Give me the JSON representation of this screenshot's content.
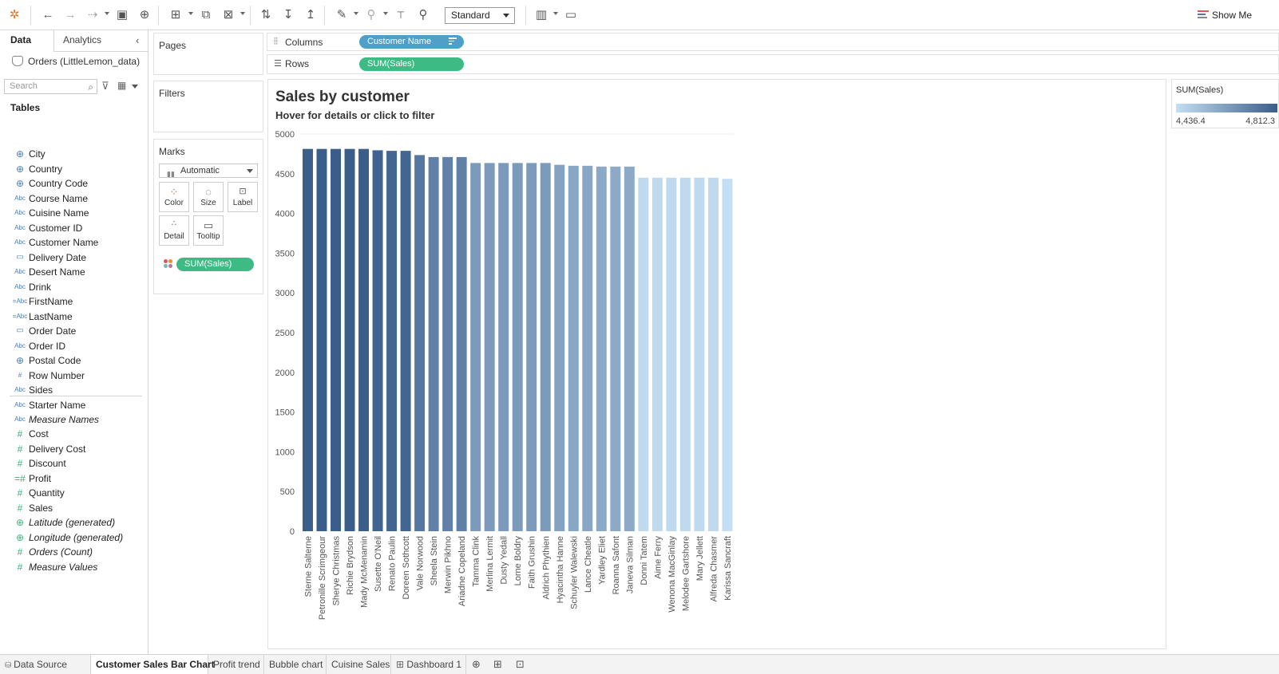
{
  "toolbar": {
    "fit": "Standard",
    "show_me": "Show Me",
    "icons": [
      "tableau-logo-icon",
      "undo-icon",
      "redo-icon",
      "replay-icon",
      "save-icon",
      "new-datasource-icon",
      "new-worksheet-icon",
      "duplicate-sheet-icon",
      "clear-sheet-icon",
      "swap-icon",
      "sort-ascending-icon",
      "sort-descending-icon",
      "highlight-icon",
      "group-icon",
      "label-icon",
      "pin-icon",
      "show-cards-icon",
      "presentation-icon"
    ]
  },
  "data_pane": {
    "tab_data": "Data",
    "tab_analytics": "Analytics",
    "datasource": "Orders (LittleLemon_data)",
    "search_placeholder": "Search",
    "tables_heading": "Tables",
    "dimensions": [
      {
        "icon": "globe",
        "label": "City"
      },
      {
        "icon": "globe",
        "label": "Country"
      },
      {
        "icon": "globe",
        "label": "Country Code"
      },
      {
        "icon": "abc",
        "label": "Course Name"
      },
      {
        "icon": "abc",
        "label": "Cuisine Name"
      },
      {
        "icon": "abc",
        "label": "Customer ID"
      },
      {
        "icon": "abc",
        "label": "Customer Name"
      },
      {
        "icon": "date",
        "label": "Delivery Date"
      },
      {
        "icon": "abc",
        "label": "Desert Name"
      },
      {
        "icon": "abc",
        "label": "Drink"
      },
      {
        "icon": "calc-abc",
        "label": "FirstName"
      },
      {
        "icon": "calc-abc",
        "label": "LastName"
      },
      {
        "icon": "date",
        "label": "Order Date"
      },
      {
        "icon": "abc",
        "label": "Order ID"
      },
      {
        "icon": "globe",
        "label": "Postal Code"
      },
      {
        "icon": "hash",
        "label": "Row Number"
      },
      {
        "icon": "abc",
        "label": "Sides"
      },
      {
        "icon": "abc",
        "label": "Starter Name"
      },
      {
        "icon": "abc",
        "label": "Measure Names",
        "italic": true
      }
    ],
    "measures": [
      {
        "icon": "hash",
        "label": "Cost"
      },
      {
        "icon": "hash",
        "label": "Delivery Cost"
      },
      {
        "icon": "hash",
        "label": "Discount"
      },
      {
        "icon": "calc-hash",
        "label": "Profit"
      },
      {
        "icon": "hash",
        "label": "Quantity"
      },
      {
        "icon": "hash",
        "label": "Sales"
      },
      {
        "icon": "globe",
        "label": "Latitude (generated)",
        "italic": true
      },
      {
        "icon": "globe",
        "label": "Longitude (generated)",
        "italic": true
      },
      {
        "icon": "hash",
        "label": "Orders (Count)",
        "italic": true
      },
      {
        "icon": "hash",
        "label": "Measure Values",
        "italic": true
      }
    ]
  },
  "cards": {
    "pages": "Pages",
    "filters": "Filters",
    "marks": "Marks",
    "mark_type": "Automatic",
    "buttons": [
      "Color",
      "Size",
      "Label",
      "Detail",
      "Tooltip"
    ],
    "marks_pill": "SUM(Sales)"
  },
  "shelves": {
    "columns_label": "Columns",
    "columns_pill": "Customer Name",
    "rows_label": "Rows",
    "rows_pill": "SUM(Sales)"
  },
  "view": {
    "title": "Sales by customer",
    "subtitle": "Hover for details or click to filter"
  },
  "legend": {
    "title": "SUM(Sales)",
    "min_label": "4,436.4",
    "max_label": "4,812.3",
    "color_low": "#c4dff3",
    "color_high": "#3a5d8a"
  },
  "chart_data": {
    "type": "bar",
    "ylim": [
      0,
      5000
    ],
    "yticks": [
      0,
      500,
      1000,
      1500,
      2000,
      2500,
      3000,
      3500,
      4000,
      4500,
      5000
    ],
    "categories": [
      "Sterne Salterne",
      "Petronille Scrimgeour",
      "Sherye Christmas",
      "Richie Brydson",
      "Mady McMenamin",
      "Susette O'Neil",
      "Renato Paulin",
      "Doreen Sothcott",
      "Vale Norwood",
      "Sheela Stein",
      "Merwin Pikhno",
      "Ariadne Copeland",
      "Tamma Clink",
      "Merlina Lermit",
      "Dusty Yedall",
      "Lorne Boldry",
      "Faith Grushin",
      "Aldrich Phythien",
      "Hyacintha Hanne",
      "Schuyler Walewski",
      "Lance Cheatle",
      "Yardley Eliet",
      "Roanna Safont",
      "Janeva Silman",
      "Donni Tatem",
      "Aime Ferry",
      "Wenona MacGinlay",
      "Melodee Gartshore",
      "Mary Jellett",
      "Alfreda Chasmer",
      "Karissa Sancraft"
    ],
    "values": [
      4812.3,
      4812.3,
      4812.3,
      4812.3,
      4812.3,
      4795,
      4788,
      4788,
      4735,
      4710,
      4710,
      4710,
      4635,
      4635,
      4635,
      4635,
      4635,
      4635,
      4612,
      4600,
      4600,
      4590,
      4590,
      4590,
      4450,
      4450,
      4450,
      4450,
      4450,
      4450,
      4436.4
    ]
  },
  "sheet_tabs": {
    "items": [
      "Data Source",
      "Customer Sales Bar Chart",
      "Profit trend",
      "Bubble chart",
      "Cuisine Sales",
      "Dashboard 1"
    ],
    "active": "Customer Sales Bar Chart"
  }
}
